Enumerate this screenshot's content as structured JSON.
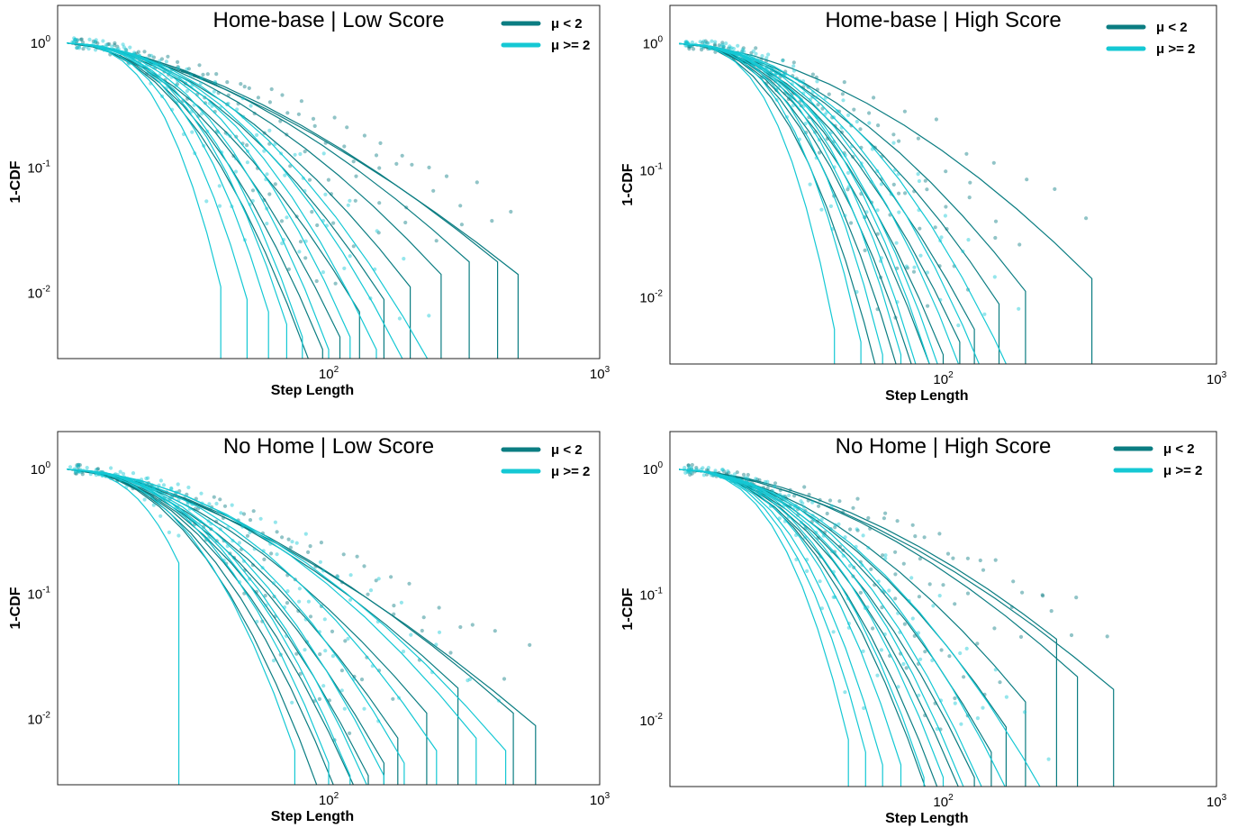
{
  "figure": {
    "colors": {
      "low_mu": "#0b7d82",
      "high_mu": "#15c8d4"
    },
    "legend": [
      "μ < 2",
      "μ >= 2"
    ],
    "xlabel": "Step Length",
    "ylabel": "1-CDF"
  },
  "chart_data": [
    {
      "type": "line",
      "title": "Home-base | Low Score",
      "xlabel": "Step Length",
      "ylabel": "1-CDF",
      "xscale": "log",
      "yscale": "log",
      "xlim": [
        10,
        1000
      ],
      "ylim": [
        0.003,
        2
      ],
      "xticks": [
        100,
        1000
      ],
      "yticks": [
        0.01,
        0.1,
        1
      ],
      "legend_position": "top-right",
      "series": [
        {
          "group": "μ < 2",
          "cutoff": 500,
          "curvature": 0.4,
          "drop": 1.8
        },
        {
          "group": "μ < 2",
          "cutoff": 420,
          "curvature": 0.45,
          "drop": 1.7
        },
        {
          "group": "μ < 2",
          "cutoff": 330,
          "curvature": 0.5,
          "drop": 1.7
        },
        {
          "group": "μ < 2",
          "cutoff": 260,
          "curvature": 0.55,
          "drop": 1.8
        },
        {
          "group": "μ < 2",
          "cutoff": 200,
          "curvature": 0.6,
          "drop": 1.9
        },
        {
          "group": "μ < 2",
          "cutoff": 160,
          "curvature": 0.65,
          "drop": 2.0
        },
        {
          "group": "μ < 2",
          "cutoff": 130,
          "curvature": 0.6,
          "drop": 2.1
        },
        {
          "group": "μ < 2",
          "cutoff": 110,
          "curvature": 0.7,
          "drop": 2.3
        },
        {
          "group": "μ < 2",
          "cutoff": 95,
          "curvature": 0.75,
          "drop": 2.4
        },
        {
          "group": "μ < 2",
          "cutoff": 85,
          "curvature": 0.8,
          "drop": 2.5
        },
        {
          "group": "μ >= 2",
          "cutoff": 250,
          "curvature": 0.75,
          "drop": 2.6
        },
        {
          "group": "μ >= 2",
          "cutoff": 190,
          "curvature": 0.8,
          "drop": 2.5
        },
        {
          "group": "μ >= 2",
          "cutoff": 150,
          "curvature": 0.85,
          "drop": 2.4
        },
        {
          "group": "μ >= 2",
          "cutoff": 120,
          "curvature": 0.9,
          "drop": 2.3
        },
        {
          "group": "μ >= 2",
          "cutoff": 100,
          "curvature": 0.95,
          "drop": 2.4
        },
        {
          "group": "μ >= 2",
          "cutoff": 80,
          "curvature": 1.0,
          "drop": 2.3
        },
        {
          "group": "μ >= 2",
          "cutoff": 70,
          "curvature": 1.05,
          "drop": 2.2
        },
        {
          "group": "μ >= 2",
          "cutoff": 60,
          "curvature": 1.1,
          "drop": 2.1
        },
        {
          "group": "μ >= 2",
          "cutoff": 50,
          "curvature": 1.1,
          "drop": 2.0
        },
        {
          "group": "μ >= 2",
          "cutoff": 40,
          "curvature": 1.2,
          "drop": 1.9
        }
      ]
    },
    {
      "type": "line",
      "title": "Home-base | High Score",
      "xlabel": "Step Length",
      "ylabel": "1-CDF",
      "xscale": "log",
      "yscale": "log",
      "xlim": [
        10,
        1000
      ],
      "ylim": [
        0.003,
        2
      ],
      "xticks": [
        100,
        1000
      ],
      "yticks": [
        0.01,
        0.1,
        1
      ],
      "legend_position": "top-right",
      "series": [
        {
          "group": "μ < 2",
          "cutoff": 350,
          "curvature": 0.55,
          "drop": 1.8
        },
        {
          "group": "μ < 2",
          "cutoff": 200,
          "curvature": 0.6,
          "drop": 1.9
        },
        {
          "group": "μ < 2",
          "cutoff": 160,
          "curvature": 0.65,
          "drop": 2.0
        },
        {
          "group": "μ < 2",
          "cutoff": 130,
          "curvature": 0.7,
          "drop": 2.2
        },
        {
          "group": "μ < 2",
          "cutoff": 115,
          "curvature": 0.75,
          "drop": 2.3
        },
        {
          "group": "μ < 2",
          "cutoff": 100,
          "curvature": 0.8,
          "drop": 2.4
        },
        {
          "group": "μ < 2",
          "cutoff": 90,
          "curvature": 0.85,
          "drop": 2.5
        },
        {
          "group": "μ < 2",
          "cutoff": 80,
          "curvature": 0.9,
          "drop": 2.6
        },
        {
          "group": "μ < 2",
          "cutoff": 70,
          "curvature": 0.95,
          "drop": 2.6
        },
        {
          "group": "μ < 2",
          "cutoff": 60,
          "curvature": 1.0,
          "drop": 2.7
        },
        {
          "group": "μ >= 2",
          "cutoff": 200,
          "curvature": 0.85,
          "drop": 2.8
        },
        {
          "group": "μ >= 2",
          "cutoff": 150,
          "curvature": 0.9,
          "drop": 2.7
        },
        {
          "group": "μ >= 2",
          "cutoff": 120,
          "curvature": 0.95,
          "drop": 2.6
        },
        {
          "group": "μ >= 2",
          "cutoff": 100,
          "curvature": 1.0,
          "drop": 2.6
        },
        {
          "group": "μ >= 2",
          "cutoff": 90,
          "curvature": 1.05,
          "drop": 2.5
        },
        {
          "group": "μ >= 2",
          "cutoff": 80,
          "curvature": 1.1,
          "drop": 2.5
        },
        {
          "group": "μ >= 2",
          "cutoff": 70,
          "curvature": 1.15,
          "drop": 2.4
        },
        {
          "group": "μ >= 2",
          "cutoff": 60,
          "curvature": 1.2,
          "drop": 2.4
        },
        {
          "group": "μ >= 2",
          "cutoff": 50,
          "curvature": 1.25,
          "drop": 2.3
        },
        {
          "group": "μ >= 2",
          "cutoff": 40,
          "curvature": 1.3,
          "drop": 2.2
        }
      ]
    },
    {
      "type": "line",
      "title": "No Home | Low Score",
      "xlabel": "Step Length",
      "ylabel": "1-CDF",
      "xscale": "log",
      "yscale": "log",
      "xlim": [
        10,
        1000
      ],
      "ylim": [
        0.003,
        2
      ],
      "xticks": [
        100,
        1000
      ],
      "yticks": [
        0.01,
        0.1,
        1
      ],
      "legend_position": "top-right",
      "series": [
        {
          "group": "μ < 2",
          "cutoff": 580,
          "curvature": 0.4,
          "drop": 2.0
        },
        {
          "group": "μ < 2",
          "cutoff": 480,
          "curvature": 0.45,
          "drop": 1.9
        },
        {
          "group": "μ < 2",
          "cutoff": 300,
          "curvature": 0.5,
          "drop": 1.7
        },
        {
          "group": "μ < 2",
          "cutoff": 230,
          "curvature": 0.55,
          "drop": 1.9
        },
        {
          "group": "μ < 2",
          "cutoff": 180,
          "curvature": 0.6,
          "drop": 2.1
        },
        {
          "group": "μ < 2",
          "cutoff": 160,
          "curvature": 0.65,
          "drop": 2.3
        },
        {
          "group": "μ < 2",
          "cutoff": 140,
          "curvature": 0.7,
          "drop": 2.4
        },
        {
          "group": "μ < 2",
          "cutoff": 125,
          "curvature": 0.75,
          "drop": 2.5
        },
        {
          "group": "μ < 2",
          "cutoff": 110,
          "curvature": 0.8,
          "drop": 2.6
        },
        {
          "group": "μ < 2",
          "cutoff": 95,
          "curvature": 0.85,
          "drop": 2.6
        },
        {
          "group": "μ >= 2",
          "cutoff": 450,
          "curvature": 0.6,
          "drop": 2.2
        },
        {
          "group": "μ >= 2",
          "cutoff": 350,
          "curvature": 0.65,
          "drop": 2.1
        },
        {
          "group": "μ >= 2",
          "cutoff": 250,
          "curvature": 0.7,
          "drop": 2.2
        },
        {
          "group": "μ >= 2",
          "cutoff": 190,
          "curvature": 0.75,
          "drop": 2.3
        },
        {
          "group": "μ >= 2",
          "cutoff": 160,
          "curvature": 0.8,
          "drop": 2.4
        },
        {
          "group": "μ >= 2",
          "cutoff": 140,
          "curvature": 0.85,
          "drop": 2.5
        },
        {
          "group": "μ >= 2",
          "cutoff": 120,
          "curvature": 0.9,
          "drop": 2.4
        },
        {
          "group": "μ >= 2",
          "cutoff": 100,
          "curvature": 0.95,
          "drop": 2.3
        },
        {
          "group": "μ >= 2",
          "cutoff": 75,
          "curvature": 1.0,
          "drop": 2.2
        },
        {
          "group": "μ >= 2",
          "cutoff": 28,
          "curvature": 1.2,
          "drop": 0.7
        }
      ]
    },
    {
      "type": "line",
      "title": "No Home | High Score",
      "xlabel": "Step Length",
      "ylabel": "1-CDF",
      "xscale": "log",
      "yscale": "log",
      "xlim": [
        10,
        1000
      ],
      "ylim": [
        0.003,
        2
      ],
      "xticks": [
        100,
        1000
      ],
      "yticks": [
        0.01,
        0.1,
        1
      ],
      "legend_position": "top-right",
      "series": [
        {
          "group": "μ < 2",
          "cutoff": 420,
          "curvature": 0.5,
          "drop": 1.7
        },
        {
          "group": "μ < 2",
          "cutoff": 310,
          "curvature": 0.55,
          "drop": 1.6
        },
        {
          "group": "μ < 2",
          "cutoff": 260,
          "curvature": 0.55,
          "drop": 1.3
        },
        {
          "group": "μ < 2",
          "cutoff": 200,
          "curvature": 0.6,
          "drop": 1.8
        },
        {
          "group": "μ < 2",
          "cutoff": 170,
          "curvature": 0.65,
          "drop": 2.0
        },
        {
          "group": "μ < 2",
          "cutoff": 150,
          "curvature": 0.7,
          "drop": 2.2
        },
        {
          "group": "μ < 2",
          "cutoff": 130,
          "curvature": 0.75,
          "drop": 2.4
        },
        {
          "group": "μ < 2",
          "cutoff": 115,
          "curvature": 0.8,
          "drop": 2.5
        },
        {
          "group": "μ < 2",
          "cutoff": 100,
          "curvature": 0.85,
          "drop": 2.6
        },
        {
          "group": "μ < 2",
          "cutoff": 90,
          "curvature": 0.9,
          "drop": 2.6
        },
        {
          "group": "μ >= 2",
          "cutoff": 260,
          "curvature": 0.7,
          "drop": 2.7
        },
        {
          "group": "μ >= 2",
          "cutoff": 180,
          "curvature": 0.8,
          "drop": 2.6
        },
        {
          "group": "μ >= 2",
          "cutoff": 140,
          "curvature": 0.85,
          "drop": 2.5
        },
        {
          "group": "μ >= 2",
          "cutoff": 120,
          "curvature": 0.9,
          "drop": 2.5
        },
        {
          "group": "μ >= 2",
          "cutoff": 100,
          "curvature": 0.95,
          "drop": 2.4
        },
        {
          "group": "μ >= 2",
          "cutoff": 85,
          "curvature": 1.0,
          "drop": 2.4
        },
        {
          "group": "μ >= 2",
          "cutoff": 70,
          "curvature": 1.05,
          "drop": 2.3
        },
        {
          "group": "μ >= 2",
          "cutoff": 60,
          "curvature": 1.1,
          "drop": 2.3
        },
        {
          "group": "μ >= 2",
          "cutoff": 52,
          "curvature": 1.15,
          "drop": 2.2
        },
        {
          "group": "μ >= 2",
          "cutoff": 45,
          "curvature": 1.2,
          "drop": 2.1
        }
      ]
    }
  ]
}
